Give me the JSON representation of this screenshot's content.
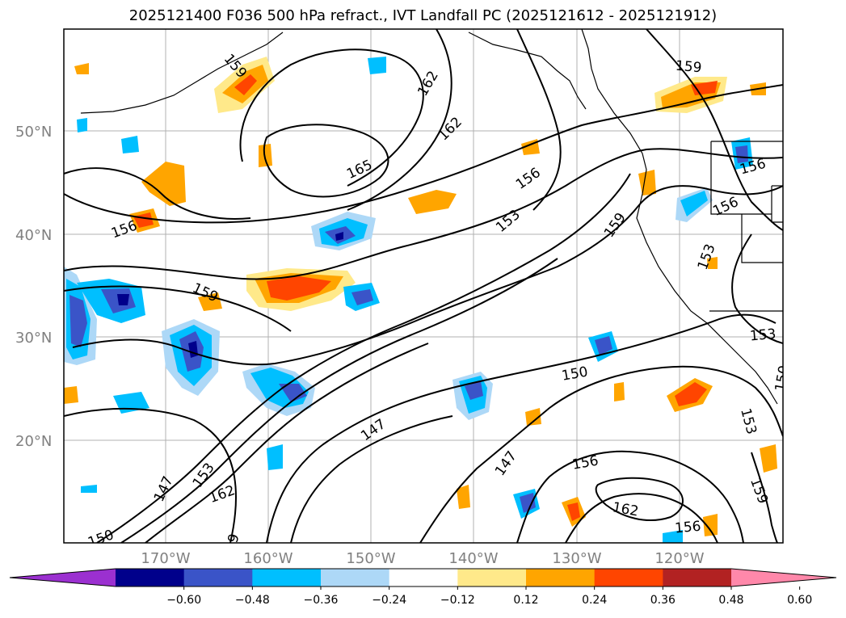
{
  "title": "2025121400 F036 500 hPa refract., IVT Landfall PC (2025121612 - 2025121912)",
  "lat_labels": [
    "50°N",
    "40°N",
    "30°N",
    "20°N"
  ],
  "lon_labels": [
    "170°W",
    "160°W",
    "150°W",
    "140°W",
    "130°W",
    "120°W"
  ],
  "contour_labels": [
    "159",
    "162",
    "162",
    "165",
    "156",
    "156",
    "153",
    "159",
    "159",
    "156",
    "156",
    "153",
    "159",
    "153",
    "150",
    "150",
    "147",
    "147",
    "153",
    "147",
    "162",
    "150",
    "156",
    "162",
    "156",
    "153",
    "159",
    "150",
    "9"
  ],
  "colorbar": {
    "ticks": [
      "−0.60",
      "−0.48",
      "−0.36",
      "−0.24",
      "−0.12",
      "0.12",
      "0.24",
      "0.36",
      "0.48",
      "0.60"
    ],
    "colors": [
      "#9b30d0",
      "#00008b",
      "#3a54c8",
      "#00bfff",
      "#add8f7",
      "#ffffff",
      "#ffe98a",
      "#ffa500",
      "#ff4500",
      "#b22222",
      "#ff88aa"
    ]
  }
}
